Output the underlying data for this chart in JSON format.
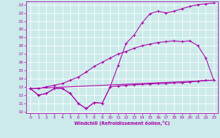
{
  "xlabel": "Windchill (Refroidissement éolien,°C)",
  "bg_color": "#cceaea",
  "grid_color": "#ffffff",
  "line_color": "#aa00aa",
  "xlim": [
    -0.5,
    23.5
  ],
  "ylim": [
    9.8,
    23.4
  ],
  "xticks": [
    0,
    1,
    2,
    3,
    4,
    5,
    6,
    7,
    8,
    9,
    10,
    11,
    12,
    13,
    14,
    15,
    16,
    17,
    18,
    19,
    20,
    21,
    22,
    23
  ],
  "yticks": [
    10,
    11,
    12,
    13,
    14,
    15,
    16,
    17,
    18,
    19,
    20,
    21,
    22,
    23
  ],
  "line1_x": [
    0,
    1,
    2,
    3,
    4,
    5,
    6,
    7,
    8,
    9,
    10,
    11,
    12,
    13,
    14,
    15,
    16,
    17,
    18,
    19,
    20,
    21,
    22,
    23
  ],
  "line1_y": [
    12.8,
    12.0,
    12.2,
    12.8,
    12.8,
    12.2,
    11.0,
    10.35,
    11.1,
    11.0,
    13.0,
    13.1,
    13.2,
    13.25,
    13.3,
    13.35,
    13.4,
    13.4,
    13.5,
    13.5,
    13.6,
    13.7,
    13.8,
    13.8
  ],
  "line2_x": [
    0,
    1,
    2,
    3,
    4,
    5,
    6,
    7,
    8,
    9,
    10,
    11,
    12,
    13,
    14,
    15,
    16,
    17,
    18,
    19,
    20,
    21,
    22,
    23
  ],
  "line2_y": [
    12.8,
    12.0,
    12.2,
    12.8,
    12.8,
    12.2,
    11.0,
    10.35,
    11.1,
    11.0,
    13.0,
    15.6,
    18.3,
    19.3,
    20.8,
    21.9,
    22.2,
    22.0,
    22.2,
    22.5,
    22.8,
    23.0,
    23.1,
    23.2
  ],
  "line3_x": [
    0,
    23
  ],
  "line3_y": [
    12.8,
    13.8
  ],
  "line4_x": [
    0,
    1,
    2,
    3,
    4,
    5,
    6,
    7,
    8,
    9,
    10,
    11,
    12,
    13,
    14,
    15,
    16,
    17,
    18,
    19,
    20,
    21,
    22,
    23
  ],
  "line4_y": [
    12.8,
    12.8,
    13.0,
    13.2,
    13.4,
    13.8,
    14.2,
    14.8,
    15.5,
    16.0,
    16.5,
    17.0,
    17.3,
    17.7,
    18.0,
    18.2,
    18.4,
    18.5,
    18.6,
    18.5,
    18.6,
    18.0,
    16.5,
    13.8
  ]
}
